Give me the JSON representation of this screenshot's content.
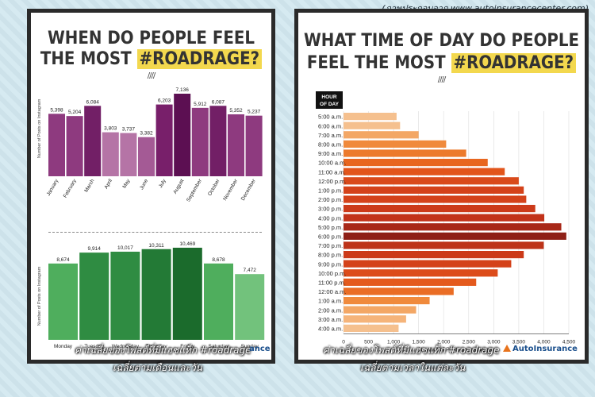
{
  "credit": "(ภาพประกอบจาก www.autoinsurancecenter.com)",
  "left": {
    "title_line1": "WHEN DO PEOPLE FEEL",
    "title_line2_pre": "THE MOST ",
    "title_line2_hl": "#ROADRAGE?",
    "separator": "////",
    "caption1": "ค่าเฉลี่ยของโพสต์ที่มีแฮชแท็ก #roadrage",
    "caption2": "เฉลี่ยตามเดือนและวัน",
    "brand_partial": "ance"
  },
  "right": {
    "title_line1": "WHAT TIME OF DAY DO PEOPLE",
    "title_line2_pre": "FEEL THE MOST ",
    "title_line2_hl": "#ROADRAGE?",
    "caption1": "ค่าเฉลี่ยของโพสต์ที่มีแฮชแท็ก #roadrage",
    "caption2": "เฉลี่ยตามเวลาในแต่ละวัน",
    "brand": "AutoInsurance"
  },
  "chart_data": [
    {
      "type": "bar",
      "ylabel": "Number of Posts on Instagram",
      "categories": [
        "January",
        "February",
        "March",
        "April",
        "May",
        "June",
        "July",
        "August",
        "September",
        "October",
        "November",
        "December"
      ],
      "values": [
        5398,
        5204,
        6084,
        3803,
        3737,
        3382,
        6203,
        7136,
        5912,
        6087,
        5352,
        5237
      ],
      "colors": [
        "#8e3a7f",
        "#8e3a7f",
        "#721f66",
        "#b574a6",
        "#b574a6",
        "#a45a95",
        "#781f6a",
        "#5c0f52",
        "#8e3a7f",
        "#721f66",
        "#8e3a7f",
        "#8e3a7f"
      ],
      "value_labels": [
        "5,398",
        "5,204",
        "6,084",
        "3,803",
        "3,737",
        "3,382",
        "6,203",
        "7,136",
        "5,912",
        "6,087",
        "5,352",
        "5,237"
      ]
    },
    {
      "type": "bar",
      "ylabel": "Number of Posts on Instagram",
      "categories": [
        "Monday",
        "Tuesday",
        "Wednesday",
        "Thursday",
        "Friday",
        "Saturday",
        "Sunday"
      ],
      "values": [
        8674,
        9914,
        10017,
        10311,
        10469,
        8678,
        7472
      ],
      "colors": [
        "#4fae5d",
        "#2f8c42",
        "#2f8c42",
        "#237a36",
        "#1b6b2c",
        "#4fae5d",
        "#72c27c"
      ],
      "value_labels": [
        "8,674",
        "9,914",
        "10,017",
        "10,311",
        "10,469",
        "8,678",
        "7,472"
      ]
    },
    {
      "type": "bar",
      "orientation": "horizontal",
      "ylabel": "HOUR OF DAY",
      "xlabel": "Number of Posts on Instagram",
      "xlim": [
        0,
        4500
      ],
      "xticks": [
        "0",
        "500",
        "1,000",
        "1,500",
        "2,000",
        "2,500",
        "3,000",
        "3,500",
        "4,000",
        "4,500"
      ],
      "categories": [
        "5:00 a.m.",
        "6:00 a.m.",
        "7:00 a.m.",
        "8:00 a.m.",
        "9:00 a.m.",
        "10:00 a.m.",
        "11:00 a.m.",
        "12:00 p.m.",
        "1:00 p.m.",
        "2:00 p.m.",
        "3:00 p.m.",
        "4:00 p.m.",
        "5:00 p.m.",
        "6:00 p.m.",
        "7:00 p.m.",
        "8:00 p.m.",
        "9:00 p.m.",
        "10:00 p.m.",
        "11:00 p.m.",
        "12:00 a.m.",
        "1:00 a.m.",
        "2:00 a.m.",
        "3:00 a.m.",
        "4:00 a.m."
      ],
      "values": [
        1060,
        1130,
        1500,
        2050,
        2450,
        2880,
        3220,
        3500,
        3600,
        3650,
        3830,
        4010,
        4350,
        4450,
        4000,
        3600,
        3350,
        3080,
        2650,
        2200,
        1720,
        1450,
        1250,
        1100
      ],
      "colors": [
        "#f5c08e",
        "#f5c08e",
        "#f3a765",
        "#f08a3c",
        "#ec7a2c",
        "#e8661f",
        "#e2551b",
        "#d94a1b",
        "#d4421a",
        "#d4421a",
        "#cc3a19",
        "#c23219",
        "#a82818",
        "#8e1f16",
        "#bd3319",
        "#cc3a19",
        "#d4421a",
        "#dc4c1b",
        "#e45a1d",
        "#ea6d25",
        "#f08a3c",
        "#f3a765",
        "#f5b47a",
        "#f5c08e"
      ]
    }
  ]
}
